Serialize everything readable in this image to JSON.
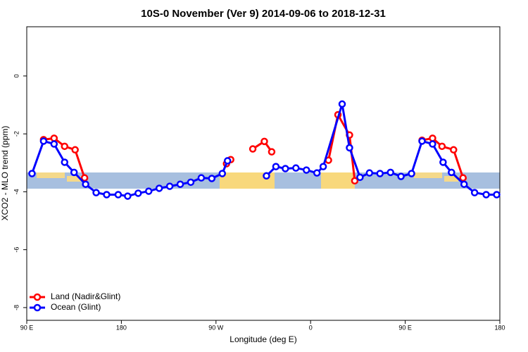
{
  "chart_data": {
    "type": "line",
    "title": "10S-0 November (Ver 9)   2014-09-06 to 2018-12-31",
    "x_label": "Longitude (deg E)",
    "y_label": "XCO2 - MLO trend (ppm)",
    "xlim": [
      90,
      540
    ],
    "ylim": [
      -8.44,
      1.7
    ],
    "xticks": [
      {
        "value": 90,
        "label": "90 E"
      },
      {
        "value": 180,
        "label": "180"
      },
      {
        "value": 270,
        "label": "90 W"
      },
      {
        "value": 360,
        "label": "0"
      },
      {
        "value": 450,
        "label": "90 E"
      },
      {
        "value": 540,
        "label": "180"
      }
    ],
    "yticks": [
      0,
      -2,
      -4,
      -6,
      -8
    ],
    "legend": "bottom-left",
    "series": [
      {
        "name": "Land (Nadir&Glint)",
        "color": "#ff0000",
        "x": [
          106,
          116,
          126,
          136,
          145,
          null,
          280,
          284,
          null,
          305,
          316,
          323,
          null,
          377,
          386,
          397,
          402,
          null,
          466,
          476,
          485,
          496,
          505
        ],
        "values": [
          -2.2,
          -2.15,
          -2.43,
          -2.55,
          -3.52,
          null,
          -3.03,
          -2.89,
          null,
          -2.52,
          -2.26,
          -2.62,
          null,
          -2.91,
          -1.34,
          -2.04,
          -3.62,
          null,
          -2.22,
          -2.15,
          -2.43,
          -2.55,
          -3.52
        ]
      },
      {
        "name": "Ocean (Glint)",
        "color": "#0000ff",
        "x": [
          95,
          106,
          116,
          126,
          135,
          146,
          156,
          166,
          177,
          186,
          196,
          206,
          216,
          226,
          236,
          246,
          256,
          266,
          276,
          281,
          null,
          318,
          327,
          336,
          346,
          356,
          366,
          372,
          390,
          397,
          407,
          416,
          426,
          436,
          446,
          456,
          466,
          476,
          486,
          494,
          506,
          516,
          527,
          537
        ],
        "values": [
          -3.37,
          -2.25,
          -2.35,
          -2.98,
          -3.33,
          -3.74,
          -4.03,
          -4.1,
          -4.1,
          -4.15,
          -4.05,
          -3.98,
          -3.88,
          -3.81,
          -3.74,
          -3.67,
          -3.52,
          -3.54,
          -3.37,
          -2.93,
          null,
          -3.45,
          -3.13,
          -3.2,
          -3.18,
          -3.25,
          -3.35,
          -3.13,
          -0.97,
          -2.48,
          -3.5,
          -3.35,
          -3.37,
          -3.33,
          -3.47,
          -3.37,
          -2.25,
          -2.35,
          -2.98,
          -3.33,
          -3.74,
          -4.03,
          -4.1,
          -4.1
        ]
      }
    ]
  }
}
